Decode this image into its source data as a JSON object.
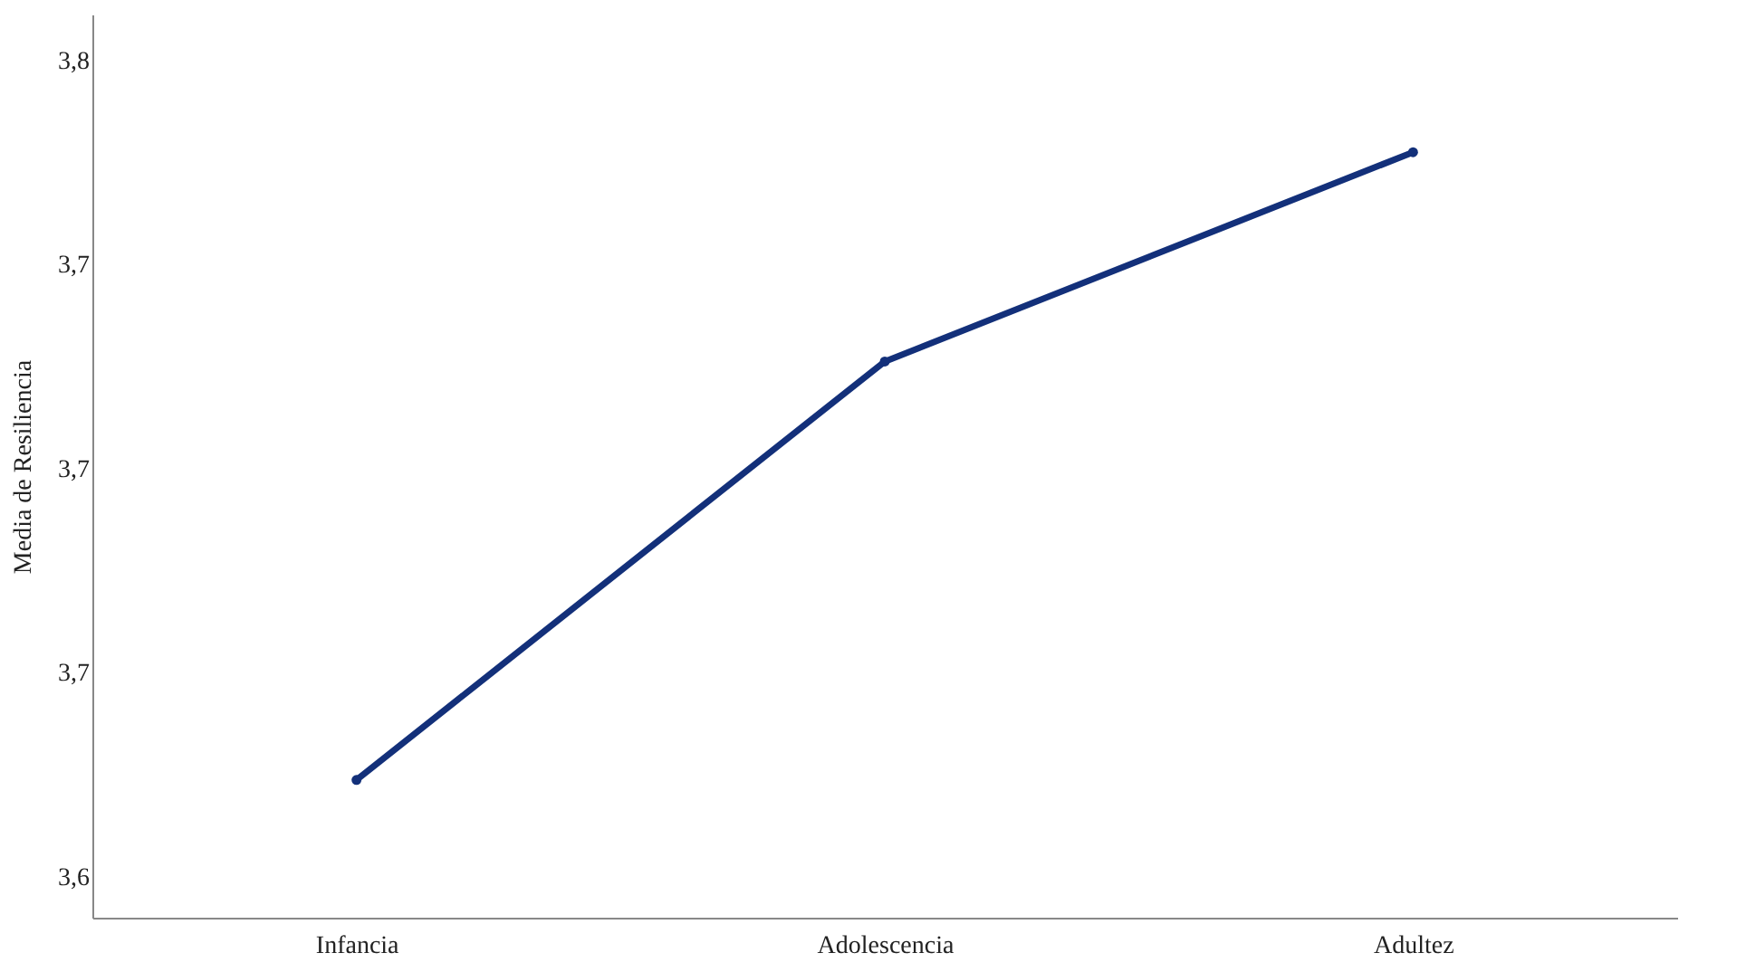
{
  "chart_data": {
    "type": "line",
    "ylabel": "Media de Resiliencia",
    "categories": [
      "Infancia",
      "Adolescencia",
      "Adultez"
    ],
    "series": [
      {
        "color": "#13307a",
        "values": [
          3.639,
          3.721,
          3.762
        ]
      }
    ],
    "ylim": [
      3.612,
      3.789
    ],
    "yticks": [
      {
        "value": 3.62,
        "label": "3,6"
      },
      {
        "value": 3.66,
        "label": "3,7"
      },
      {
        "value": 3.7,
        "label": "3,7"
      },
      {
        "value": 3.74,
        "label": "3,7"
      },
      {
        "value": 3.78,
        "label": "3,8"
      }
    ],
    "grid": false,
    "marker": "circle",
    "line_style": "solid",
    "legend": false
  }
}
